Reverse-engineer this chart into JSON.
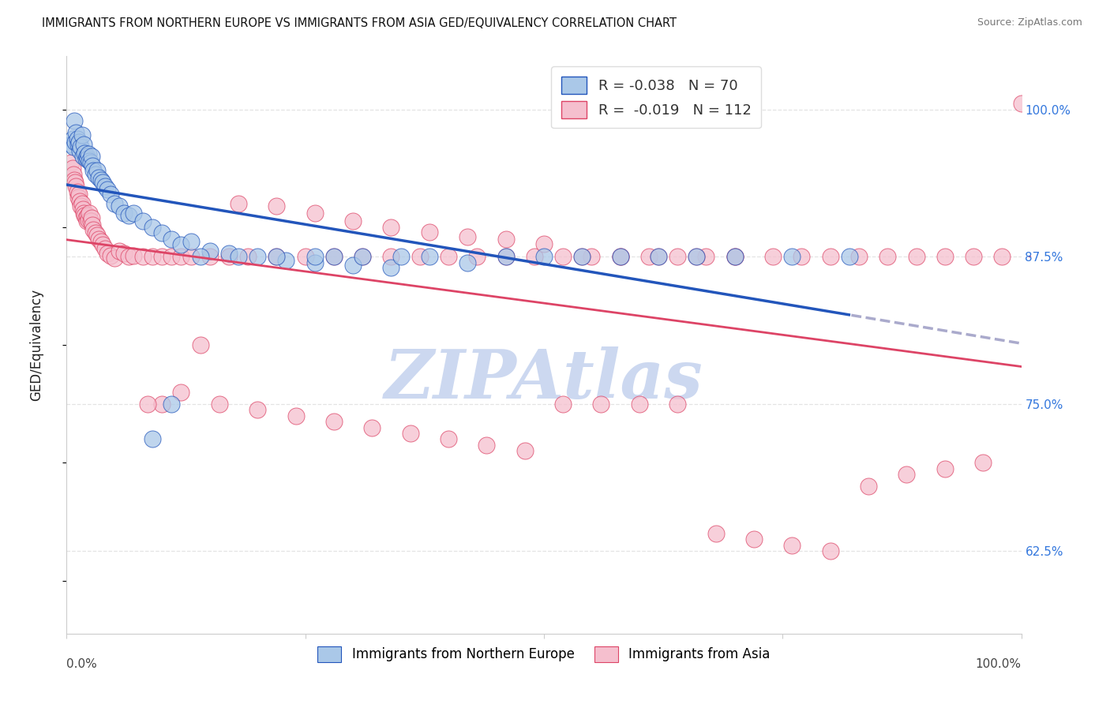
{
  "title": "IMMIGRANTS FROM NORTHERN EUROPE VS IMMIGRANTS FROM ASIA GED/EQUIVALENCY CORRELATION CHART",
  "source": "Source: ZipAtlas.com",
  "ylabel": "GED/Equivalency",
  "ytick_labels": [
    "62.5%",
    "75.0%",
    "87.5%",
    "100.0%"
  ],
  "ytick_values": [
    0.625,
    0.75,
    0.875,
    1.0
  ],
  "xlim": [
    0.0,
    1.0
  ],
  "ylim": [
    0.555,
    1.045
  ],
  "legend_blue_label": "R = -0.038   N = 70",
  "legend_pink_label": "R =  -0.019   N = 112",
  "scatter_blue_color": "#aac8e8",
  "scatter_pink_color": "#f5bfce",
  "line_blue_color": "#2255bb",
  "line_pink_color": "#dd4466",
  "line_dashed_color": "#aaaacc",
  "watermark_color": "#ccd8f0",
  "background_color": "#ffffff",
  "grid_color": "#e4e4e4",
  "title_color": "#111111",
  "source_color": "#777777",
  "right_ytick_color": "#3377dd",
  "bottom_legend_blue": "Immigrants from Northern Europe",
  "bottom_legend_pink": "Immigrants from Asia",
  "blue_x": [
    0.005,
    0.006,
    0.007,
    0.008,
    0.009,
    0.01,
    0.011,
    0.012,
    0.013,
    0.014,
    0.015,
    0.016,
    0.017,
    0.018,
    0.019,
    0.02,
    0.021,
    0.022,
    0.023,
    0.024,
    0.025,
    0.026,
    0.027,
    0.028,
    0.03,
    0.032,
    0.034,
    0.036,
    0.038,
    0.04,
    0.043,
    0.046,
    0.05,
    0.055,
    0.06,
    0.065,
    0.07,
    0.08,
    0.09,
    0.1,
    0.11,
    0.12,
    0.13,
    0.15,
    0.17,
    0.2,
    0.23,
    0.26,
    0.3,
    0.34,
    0.38,
    0.42,
    0.46,
    0.5,
    0.54,
    0.58,
    0.62,
    0.66,
    0.7,
    0.76,
    0.82,
    0.28,
    0.31,
    0.35,
    0.26,
    0.22,
    0.18,
    0.14,
    0.11,
    0.09
  ],
  "blue_y": [
    0.97,
    0.975,
    0.968,
    0.99,
    0.972,
    0.98,
    0.975,
    0.97,
    0.972,
    0.965,
    0.968,
    0.978,
    0.96,
    0.97,
    0.963,
    0.958,
    0.96,
    0.958,
    0.962,
    0.956,
    0.955,
    0.96,
    0.952,
    0.948,
    0.945,
    0.948,
    0.942,
    0.94,
    0.938,
    0.935,
    0.932,
    0.928,
    0.92,
    0.918,
    0.912,
    0.91,
    0.912,
    0.905,
    0.9,
    0.895,
    0.89,
    0.885,
    0.888,
    0.88,
    0.878,
    0.875,
    0.872,
    0.87,
    0.868,
    0.866,
    0.875,
    0.87,
    0.875,
    0.875,
    0.875,
    0.875,
    0.875,
    0.875,
    0.875,
    0.875,
    0.875,
    0.875,
    0.875,
    0.875,
    0.875,
    0.875,
    0.875,
    0.875,
    0.75,
    0.72
  ],
  "pink_x": [
    0.005,
    0.006,
    0.007,
    0.008,
    0.009,
    0.01,
    0.011,
    0.012,
    0.013,
    0.014,
    0.015,
    0.016,
    0.017,
    0.018,
    0.019,
    0.02,
    0.021,
    0.022,
    0.023,
    0.024,
    0.025,
    0.026,
    0.027,
    0.028,
    0.03,
    0.032,
    0.034,
    0.036,
    0.038,
    0.04,
    0.043,
    0.046,
    0.05,
    0.055,
    0.06,
    0.065,
    0.07,
    0.08,
    0.09,
    0.1,
    0.11,
    0.12,
    0.13,
    0.15,
    0.17,
    0.19,
    0.22,
    0.25,
    0.28,
    0.31,
    0.34,
    0.37,
    0.4,
    0.43,
    0.46,
    0.49,
    0.52,
    0.55,
    0.58,
    0.61,
    0.64,
    0.67,
    0.7,
    0.74,
    0.77,
    0.8,
    0.83,
    0.86,
    0.89,
    0.92,
    0.95,
    0.98,
    1.0,
    0.18,
    0.22,
    0.26,
    0.3,
    0.34,
    0.38,
    0.42,
    0.46,
    0.5,
    0.54,
    0.58,
    0.62,
    0.66,
    0.7,
    0.16,
    0.2,
    0.24,
    0.28,
    0.32,
    0.36,
    0.4,
    0.44,
    0.48,
    0.52,
    0.56,
    0.6,
    0.64,
    0.68,
    0.72,
    0.76,
    0.8,
    0.84,
    0.88,
    0.92,
    0.96,
    0.14,
    0.12,
    0.1,
    0.085
  ],
  "pink_y": [
    0.955,
    0.95,
    0.945,
    0.94,
    0.938,
    0.935,
    0.93,
    0.925,
    0.928,
    0.922,
    0.918,
    0.92,
    0.915,
    0.912,
    0.91,
    0.908,
    0.905,
    0.91,
    0.906,
    0.912,
    0.905,
    0.908,
    0.902,
    0.898,
    0.895,
    0.893,
    0.89,
    0.888,
    0.885,
    0.882,
    0.878,
    0.876,
    0.874,
    0.88,
    0.878,
    0.875,
    0.876,
    0.875,
    0.875,
    0.875,
    0.875,
    0.875,
    0.875,
    0.875,
    0.875,
    0.875,
    0.875,
    0.875,
    0.875,
    0.875,
    0.875,
    0.875,
    0.875,
    0.875,
    0.875,
    0.875,
    0.875,
    0.875,
    0.875,
    0.875,
    0.875,
    0.875,
    0.875,
    0.875,
    0.875,
    0.875,
    0.875,
    0.875,
    0.875,
    0.875,
    0.875,
    0.875,
    1.005,
    0.92,
    0.918,
    0.912,
    0.905,
    0.9,
    0.896,
    0.892,
    0.89,
    0.886,
    0.875,
    0.875,
    0.875,
    0.875,
    0.875,
    0.75,
    0.745,
    0.74,
    0.735,
    0.73,
    0.725,
    0.72,
    0.715,
    0.71,
    0.75,
    0.75,
    0.75,
    0.75,
    0.64,
    0.635,
    0.63,
    0.625,
    0.68,
    0.69,
    0.695,
    0.7,
    0.8,
    0.76,
    0.75,
    0.75
  ]
}
